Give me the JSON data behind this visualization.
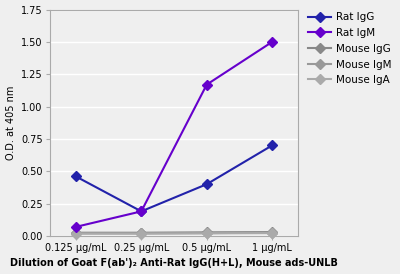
{
  "x_labels": [
    "0.125 μg/mL",
    "0.25 μg/mL",
    "0.5 μg/mL",
    "1 μg/mL"
  ],
  "x_values": [
    1,
    2,
    3,
    4
  ],
  "series": [
    {
      "name": "Rat IgG",
      "values": [
        0.46,
        0.19,
        0.4,
        0.7
      ],
      "color": "#2222AA",
      "marker": "D",
      "linewidth": 1.5,
      "markersize": 5,
      "linestyle": "-",
      "zorder": 3
    },
    {
      "name": "Rat IgM",
      "values": [
        0.07,
        0.19,
        1.17,
        1.5
      ],
      "color": "#6600CC",
      "marker": "D",
      "linewidth": 1.5,
      "markersize": 5,
      "linestyle": "-",
      "zorder": 3
    },
    {
      "name": "Mouse IgG",
      "values": [
        0.025,
        0.025,
        0.028,
        0.03
      ],
      "color": "#888888",
      "marker": "D",
      "linewidth": 1.5,
      "markersize": 5,
      "linestyle": "-",
      "zorder": 2
    },
    {
      "name": "Mouse IgM",
      "values": [
        0.02,
        0.02,
        0.022,
        0.025
      ],
      "color": "#999999",
      "marker": "D",
      "linewidth": 1.5,
      "markersize": 5,
      "linestyle": "-",
      "zorder": 2
    },
    {
      "name": "Mouse IgA",
      "values": [
        0.018,
        0.018,
        0.02,
        0.022
      ],
      "color": "#AAAAAA",
      "marker": "D",
      "linewidth": 1.5,
      "markersize": 5,
      "linestyle": "-",
      "zorder": 2
    }
  ],
  "ylabel": "O.D. at 405 nm",
  "xlabel": "Dilution of Goat F(ab')₂ Anti-Rat IgG(H+L), Mouse ads-UNLB",
  "ylim": [
    0.0,
    1.75
  ],
  "yticks": [
    0.0,
    0.25,
    0.5,
    0.75,
    1.0,
    1.25,
    1.5,
    1.75
  ],
  "ytick_labels": [
    "0.00",
    "0.25",
    "0.50",
    "0.75",
    "1.00",
    "1.25",
    "1.50",
    "1.75"
  ],
  "background_color": "#efefef",
  "plot_bg_color": "#efefef",
  "grid_color": "#ffffff",
  "spine_color": "#aaaaaa",
  "label_fontsize": 7,
  "tick_fontsize": 7,
  "legend_fontsize": 7.5
}
